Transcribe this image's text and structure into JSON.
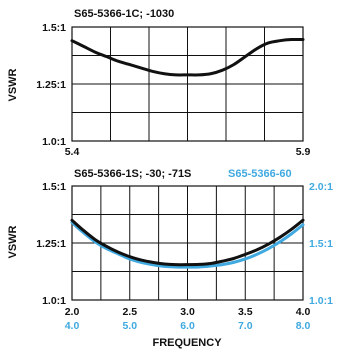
{
  "colors": {
    "black_series": "#111111",
    "blue_series": "#3fa9e0",
    "grid": "#111111"
  },
  "chart_data": [
    {
      "type": "line",
      "title": "S65-5366-1C; -1030",
      "ylabel": "VSWR",
      "xlabel": "",
      "xlim": [
        5.4,
        5.9
      ],
      "ylim": [
        1.0,
        1.5
      ],
      "x_tick_labels": [
        "5.4",
        "5.9"
      ],
      "y_tick_labels": [
        "1.5:1",
        "1.25:1",
        "1.0:1"
      ],
      "grid": true,
      "series": [
        {
          "color": "#111111",
          "x": [
            5.4,
            5.425,
            5.45,
            5.475,
            5.5,
            5.525,
            5.55,
            5.575,
            5.6,
            5.625,
            5.65,
            5.675,
            5.7,
            5.725,
            5.75,
            5.775,
            5.8,
            5.825,
            5.85,
            5.875,
            5.9
          ],
          "y": [
            1.44,
            1.415,
            1.39,
            1.37,
            1.35,
            1.335,
            1.32,
            1.305,
            1.295,
            1.29,
            1.29,
            1.29,
            1.295,
            1.31,
            1.335,
            1.37,
            1.405,
            1.43,
            1.44,
            1.445,
            1.445
          ]
        }
      ]
    },
    {
      "type": "line",
      "title": "S65-5366-1S; -30; -71S",
      "ylabel": "VSWR",
      "xlabel": "FREQUENCY",
      "xlim": [
        2.0,
        4.0
      ],
      "ylim": [
        1.0,
        1.5
      ],
      "x_tick_labels": [
        "2.0",
        "2.5",
        "3.0",
        "3.5",
        "4.0"
      ],
      "y_tick_labels": [
        "1.5:1",
        "1.25:1",
        "1.0:1"
      ],
      "secondary_x": {
        "xlim": [
          4.0,
          8.0
        ],
        "tick_labels": [
          "4.0",
          "5.0",
          "6.0",
          "7.0",
          "8.0"
        ]
      },
      "secondary_y": {
        "ylim": [
          1.0,
          2.0
        ],
        "tick_labels": [
          "2.0:1",
          "1.5:1",
          "1.0:1"
        ]
      },
      "legend_label": "S65-5366-60",
      "grid": true,
      "series": [
        {
          "color": "#111111",
          "x": [
            2.0,
            2.1,
            2.2,
            2.3,
            2.4,
            2.5,
            2.6,
            2.7,
            2.8,
            2.9,
            3.0,
            3.1,
            3.2,
            3.3,
            3.4,
            3.5,
            3.6,
            3.7,
            3.8,
            3.9,
            4.0
          ],
          "y": [
            1.35,
            1.305,
            1.265,
            1.235,
            1.21,
            1.19,
            1.175,
            1.165,
            1.158,
            1.155,
            1.155,
            1.156,
            1.16,
            1.17,
            1.182,
            1.2,
            1.22,
            1.245,
            1.275,
            1.31,
            1.35
          ]
        },
        {
          "color": "#3fa9e0",
          "axis": "secondary",
          "x": [
            4.0,
            4.2,
            4.4,
            4.6,
            4.8,
            5.0,
            5.2,
            5.4,
            5.6,
            5.8,
            6.0,
            6.2,
            6.4,
            6.6,
            6.8,
            7.0,
            7.2,
            7.4,
            7.6,
            7.8,
            8.0
          ],
          "y": [
            1.68,
            1.59,
            1.51,
            1.45,
            1.405,
            1.36,
            1.33,
            1.31,
            1.295,
            1.29,
            1.288,
            1.29,
            1.298,
            1.31,
            1.33,
            1.36,
            1.4,
            1.45,
            1.51,
            1.58,
            1.66
          ]
        }
      ]
    }
  ]
}
